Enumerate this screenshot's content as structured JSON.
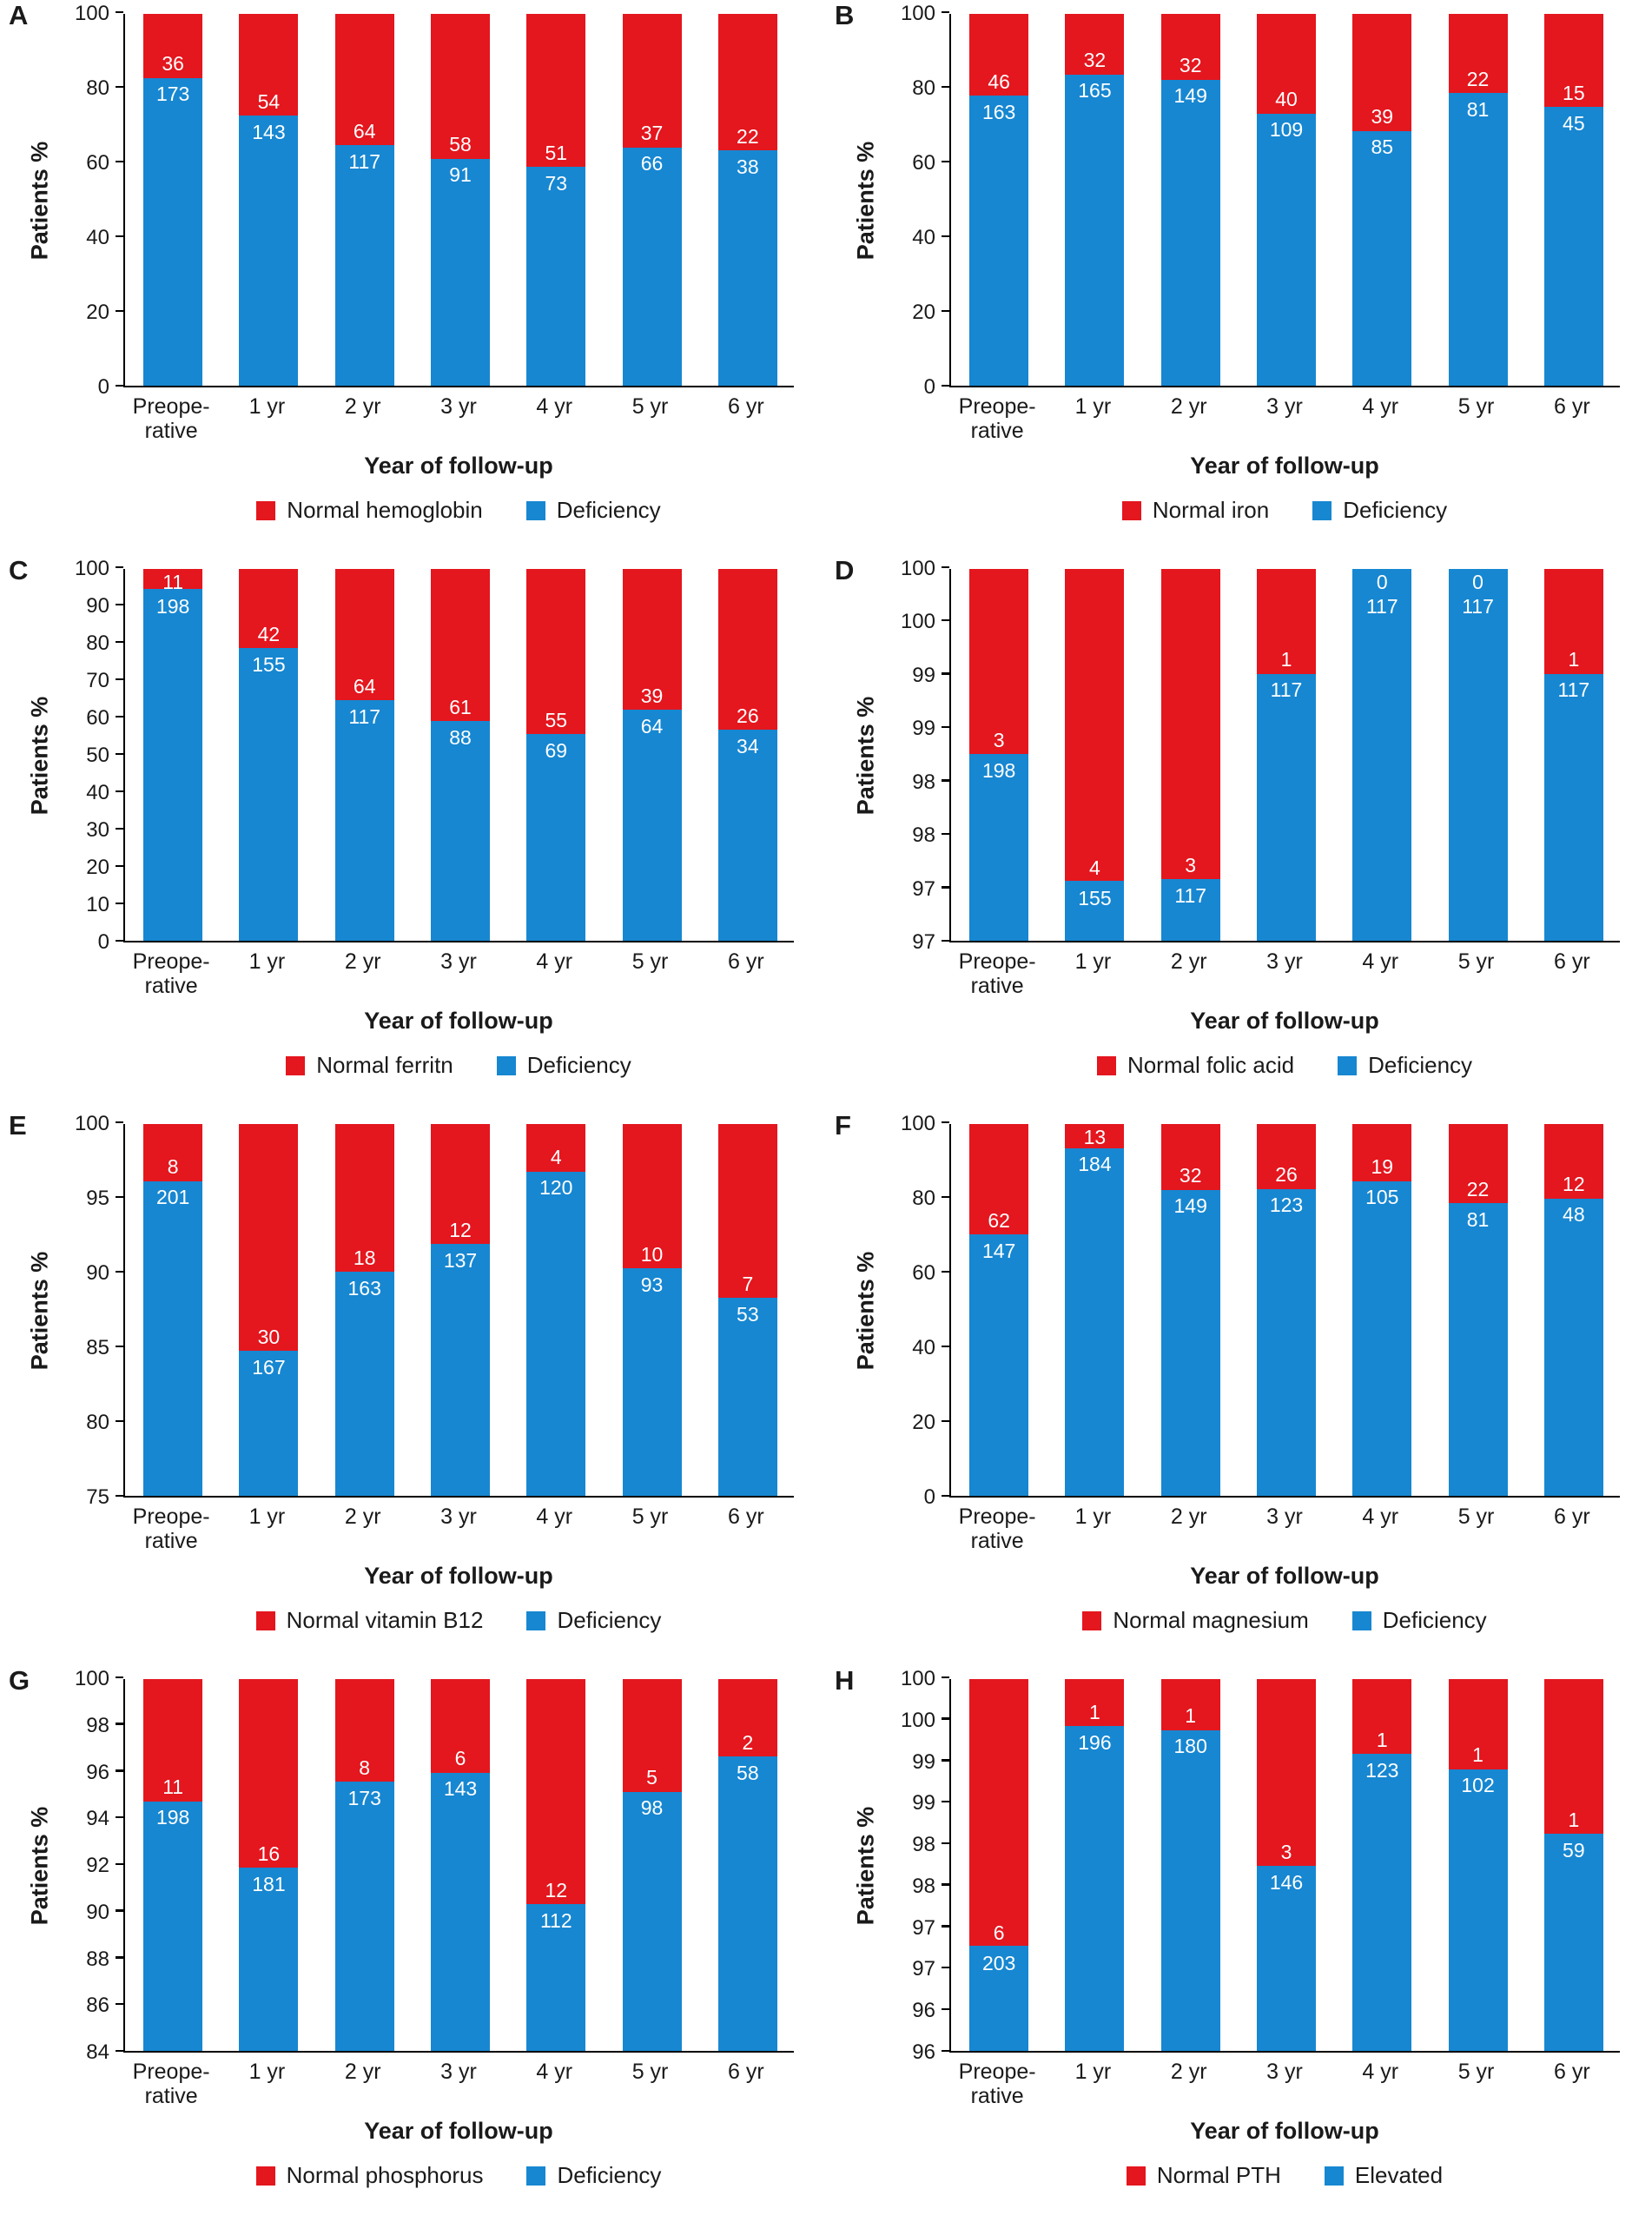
{
  "figure": {
    "colors": {
      "red": "#e4161e",
      "blue": "#1787d1",
      "axis": "#000000",
      "text": "#1a1a1a",
      "bar_label": "#ffffff"
    }
  },
  "chart_data": [
    {
      "panel": "A",
      "type": "bar",
      "stacked": true,
      "unit": "percent of patients",
      "ylabel": "Patients %",
      "xlabel": "Year of follow-up",
      "categories": [
        "Preope-\nrative",
        "1 yr",
        "2 yr",
        "3 yr",
        "4 yr",
        "5 yr",
        "6 yr"
      ],
      "y_min": 0,
      "y_max": 100,
      "y_ticks_bottom_to_top": [
        "0",
        "20",
        "40",
        "60",
        "80",
        "100"
      ],
      "series": [
        {
          "name": "Normal hemoglobin",
          "color": "#e4161e",
          "values": [
            36,
            54,
            64,
            58,
            51,
            37,
            22
          ]
        },
        {
          "name": "Deficiency",
          "color": "#1787d1",
          "values": [
            173,
            143,
            117,
            91,
            73,
            66,
            38
          ]
        }
      ]
    },
    {
      "panel": "B",
      "type": "bar",
      "stacked": true,
      "unit": "percent of patients",
      "ylabel": "Patients %",
      "xlabel": "Year of follow-up",
      "categories": [
        "Preope-\nrative",
        "1 yr",
        "2 yr",
        "3 yr",
        "4 yr",
        "5 yr",
        "6 yr"
      ],
      "y_min": 0,
      "y_max": 100,
      "y_ticks_bottom_to_top": [
        "0",
        "20",
        "40",
        "60",
        "80",
        "100"
      ],
      "series": [
        {
          "name": "Normal iron",
          "color": "#e4161e",
          "values": [
            46,
            32,
            32,
            40,
            39,
            22,
            15
          ]
        },
        {
          "name": "Deficiency",
          "color": "#1787d1",
          "values": [
            163,
            165,
            149,
            109,
            85,
            81,
            45
          ]
        }
      ]
    },
    {
      "panel": "C",
      "type": "bar",
      "stacked": true,
      "unit": "percent of patients",
      "ylabel": "Patients %",
      "xlabel": "Year of follow-up",
      "categories": [
        "Preope-\nrative",
        "1 yr",
        "2 yr",
        "3 yr",
        "4 yr",
        "5 yr",
        "6 yr"
      ],
      "y_min": 0,
      "y_max": 100,
      "y_ticks_bottom_to_top": [
        "0",
        "10",
        "20",
        "30",
        "40",
        "50",
        "60",
        "70",
        "80",
        "90",
        "100"
      ],
      "series": [
        {
          "name": "Normal ferritn",
          "color": "#e4161e",
          "values": [
            11,
            42,
            64,
            61,
            55,
            39,
            26
          ]
        },
        {
          "name": "Deficiency",
          "color": "#1787d1",
          "values": [
            198,
            155,
            117,
            88,
            69,
            64,
            34
          ]
        }
      ]
    },
    {
      "panel": "D",
      "type": "bar",
      "stacked": true,
      "unit": "percent of patients",
      "ylabel": "Patients %",
      "xlabel": "Year of follow-up",
      "categories": [
        "Preope-\nrative",
        "1 yr",
        "2 yr",
        "3 yr",
        "4 yr",
        "5 yr",
        "6 yr"
      ],
      "y_min": 97,
      "y_max": 100,
      "y_ticks_bottom_to_top": [
        "97",
        "97",
        "98",
        "98",
        "99",
        "99",
        "100",
        "100"
      ],
      "series": [
        {
          "name": "Normal folic acid",
          "color": "#e4161e",
          "values": [
            3,
            4,
            3,
            1,
            0,
            0,
            1
          ]
        },
        {
          "name": "Deficiency",
          "color": "#1787d1",
          "values": [
            198,
            155,
            117,
            117,
            117,
            117,
            117
          ]
        }
      ]
    },
    {
      "panel": "E",
      "type": "bar",
      "stacked": true,
      "unit": "percent of patients",
      "ylabel": "Patients %",
      "xlabel": "Year of follow-up",
      "categories": [
        "Preope-\nrative",
        "1 yr",
        "2 yr",
        "3 yr",
        "4 yr",
        "5 yr",
        "6 yr"
      ],
      "y_min": 75,
      "y_max": 100,
      "y_ticks_bottom_to_top": [
        "75",
        "80",
        "85",
        "90",
        "95",
        "100"
      ],
      "series": [
        {
          "name": "Normal vitamin B12",
          "color": "#e4161e",
          "values": [
            8,
            30,
            18,
            12,
            4,
            10,
            7
          ]
        },
        {
          "name": "Deficiency",
          "color": "#1787d1",
          "values": [
            201,
            167,
            163,
            137,
            120,
            93,
            53
          ]
        }
      ]
    },
    {
      "panel": "F",
      "type": "bar",
      "stacked": true,
      "unit": "percent of patients",
      "ylabel": "Patients %",
      "xlabel": "Year of follow-up",
      "categories": [
        "Preope-\nrative",
        "1 yr",
        "2 yr",
        "3 yr",
        "4 yr",
        "5 yr",
        "6 yr"
      ],
      "y_min": 0,
      "y_max": 100,
      "y_ticks_bottom_to_top": [
        "0",
        "20",
        "40",
        "60",
        "80",
        "100"
      ],
      "series": [
        {
          "name": "Normal magnesium",
          "color": "#e4161e",
          "values": [
            62,
            13,
            32,
            26,
            19,
            22,
            12
          ]
        },
        {
          "name": "Deficiency",
          "color": "#1787d1",
          "values": [
            147,
            184,
            149,
            123,
            105,
            81,
            48
          ]
        }
      ]
    },
    {
      "panel": "G",
      "type": "bar",
      "stacked": true,
      "unit": "percent of patients",
      "ylabel": "Patients %",
      "xlabel": "Year of follow-up",
      "categories": [
        "Preope-\nrative",
        "1 yr",
        "2 yr",
        "3 yr",
        "4 yr",
        "5 yr",
        "6 yr"
      ],
      "y_min": 84,
      "y_max": 100,
      "y_ticks_bottom_to_top": [
        "84",
        "86",
        "88",
        "90",
        "92",
        "94",
        "96",
        "98",
        "100"
      ],
      "series": [
        {
          "name": "Normal phosphorus",
          "color": "#e4161e",
          "values": [
            11,
            16,
            8,
            6,
            12,
            5,
            2
          ]
        },
        {
          "name": "Deficiency",
          "color": "#1787d1",
          "values": [
            198,
            181,
            173,
            143,
            112,
            98,
            58
          ]
        }
      ]
    },
    {
      "panel": "H",
      "type": "bar",
      "stacked": true,
      "unit": "percent of patients",
      "ylabel": "Patients %",
      "xlabel": "Year of follow-up",
      "categories": [
        "Preope-\nrative",
        "1 yr",
        "2 yr",
        "3 yr",
        "4 yr",
        "5 yr",
        "6 yr"
      ],
      "y_min": 96,
      "y_max": 100,
      "y_ticks_bottom_to_top": [
        "96",
        "96",
        "97",
        "97",
        "98",
        "98",
        "99",
        "99",
        "100",
        "100"
      ],
      "series": [
        {
          "name": "Normal PTH",
          "color": "#e4161e",
          "values": [
            6,
            1,
            1,
            3,
            1,
            1,
            1
          ]
        },
        {
          "name": "Elevated",
          "color": "#1787d1",
          "values": [
            203,
            196,
            180,
            146,
            123,
            102,
            59
          ]
        }
      ]
    }
  ]
}
